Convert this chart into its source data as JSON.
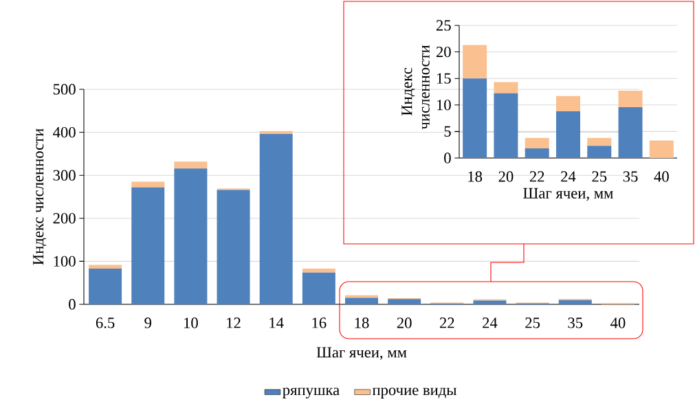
{
  "chart_data": [
    {
      "type": "bar",
      "stacked": true,
      "xlabel": "Шаг ячеи, мм",
      "ylabel": "Индекс численности",
      "categories": [
        "6.5",
        "9",
        "10",
        "12",
        "14",
        "16",
        "18",
        "20",
        "22",
        "24",
        "25",
        "35",
        "40"
      ],
      "series": [
        {
          "name": "ряпушка",
          "color": "#4f81bd",
          "values": [
            83,
            272,
            316,
            266,
            396,
            74,
            15,
            12.2,
            1.8,
            8.8,
            2.3,
            9.6,
            0
          ]
        },
        {
          "name": "прочие виды",
          "color": "#fac090",
          "values": [
            9,
            13,
            16,
            3,
            7,
            9,
            6.3,
            2.1,
            2.0,
            2.9,
            1.5,
            3.1,
            3.3
          ]
        }
      ],
      "ylim": [
        0,
        500
      ],
      "yticks": [
        0,
        100,
        200,
        300,
        400,
        500
      ],
      "grid": "y",
      "legend": "bottom"
    },
    {
      "type": "bar",
      "stacked": true,
      "xlabel": "Шаг ячеи, мм",
      "ylabel": "Индекс численности",
      "categories": [
        "18",
        "20",
        "22",
        "24",
        "25",
        "35",
        "40"
      ],
      "series": [
        {
          "color": "#4f81bd",
          "values": [
            15,
            12.2,
            1.8,
            8.8,
            2.3,
            9.6,
            0
          ]
        },
        {
          "color": "#fac090",
          "values": [
            6.3,
            2.1,
            2.0,
            2.9,
            1.5,
            3.1,
            3.3
          ]
        }
      ],
      "ylim": [
        0,
        25
      ],
      "yticks": [
        0,
        5,
        10,
        15,
        20,
        25
      ],
      "grid": "y"
    }
  ]
}
